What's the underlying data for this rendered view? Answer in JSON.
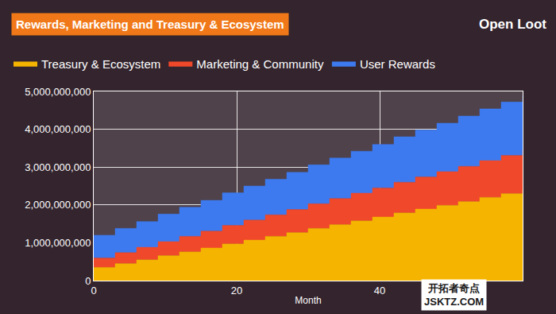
{
  "chart_data": {
    "type": "area",
    "title": "Rewards, Marketing and Treasury & Ecosystem",
    "annotations": [
      "Open Loot",
      "开拓者奇点",
      "JSKTZ.COM"
    ],
    "x_label": "Month",
    "x": [
      0,
      3,
      6,
      9,
      12,
      15,
      18,
      21,
      24,
      27,
      30,
      33,
      36,
      39,
      42,
      45,
      48,
      51,
      54,
      57,
      60
    ],
    "series": [
      {
        "name": "Treasury & Ecosystem",
        "color": "#f5b400",
        "values": [
          350000000,
          450000000,
          550000000,
          660000000,
          760000000,
          860000000,
          970000000,
          1070000000,
          1170000000,
          1270000000,
          1380000000,
          1480000000,
          1580000000,
          1680000000,
          1790000000,
          1890000000,
          1990000000,
          2090000000,
          2200000000,
          2300000000,
          2400000000
        ]
      },
      {
        "name": "Marketing & Community",
        "color": "#f0482a",
        "values": [
          250000000,
          290000000,
          330000000,
          370000000,
          410000000,
          450000000,
          490000000,
          530000000,
          570000000,
          610000000,
          650000000,
          690000000,
          730000000,
          770000000,
          810000000,
          850000000,
          890000000,
          930000000,
          970000000,
          1010000000,
          1050000000
        ]
      },
      {
        "name": "User Rewards",
        "color": "#3d7af0",
        "values": [
          600000000,
          640000000,
          680000000,
          730000000,
          770000000,
          810000000,
          860000000,
          900000000,
          940000000,
          980000000,
          1030000000,
          1070000000,
          1110000000,
          1150000000,
          1200000000,
          1240000000,
          1280000000,
          1330000000,
          1370000000,
          1410000000,
          1450000000
        ]
      }
    ],
    "xlim": [
      0,
      60
    ],
    "xticks": [
      0,
      20,
      40
    ],
    "ylim": [
      0,
      5000000000
    ],
    "yticks": [
      0,
      {
        "value": 1000000000,
        "label": "1,000,000,000"
      },
      {
        "value": 2000000000,
        "label": "2,000,000,000"
      },
      {
        "value": 3000000000,
        "label": "3,000,000,000"
      },
      {
        "value": 4000000000,
        "label": "4,000,000,000"
      },
      {
        "value": 5000000000,
        "label": "5,000,000,000"
      }
    ],
    "stacked": true,
    "grid": true,
    "legend": "top",
    "line_style": "step"
  }
}
